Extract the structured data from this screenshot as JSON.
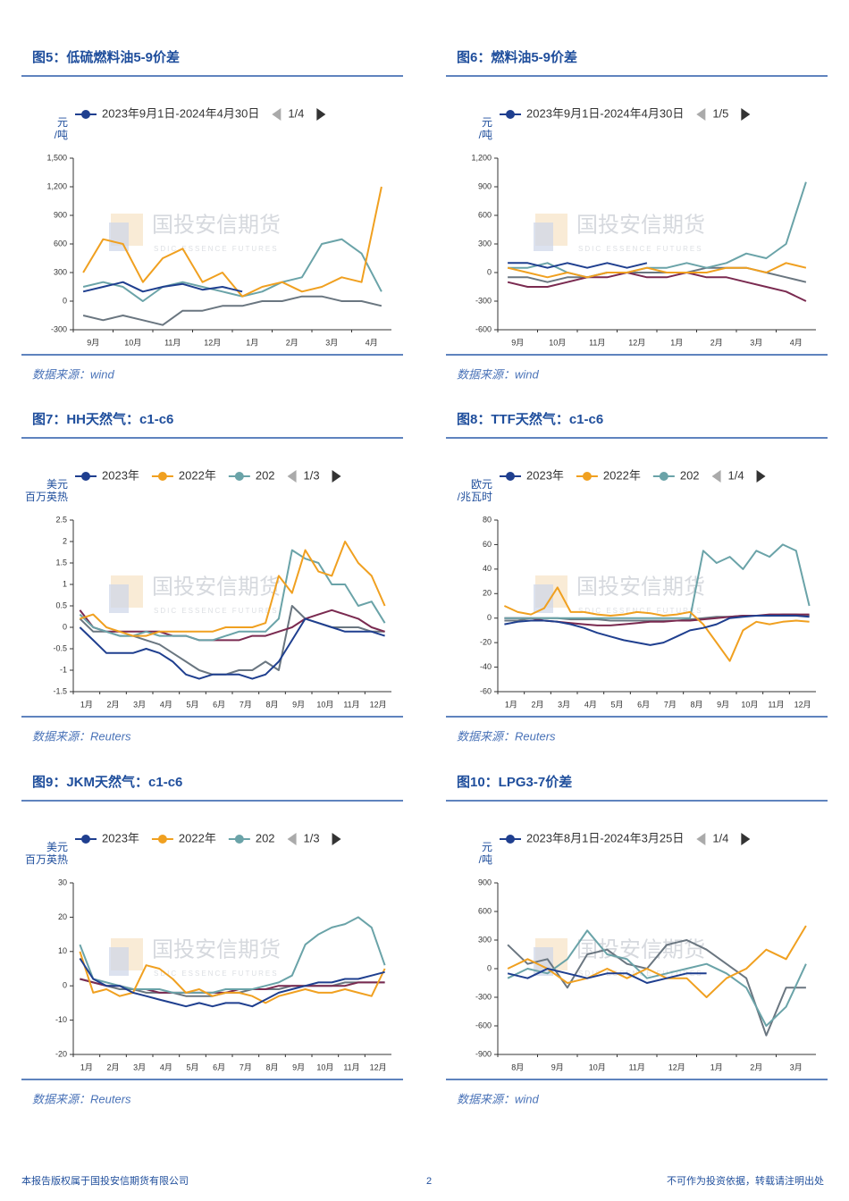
{
  "watermark": {
    "name": "国投安信期货",
    "sub": "SDIC ESSENCE FUTURES"
  },
  "footer": {
    "left": "本报告版权属于国投安信期货有限公司",
    "page": "2",
    "right": "不可作为投资依据，转载请注明出处"
  },
  "chart_data": [
    {
      "type": "line",
      "title": "图5：低硫燃料油5-9价差",
      "source": "数据来源：wind",
      "ylabel": [
        "元",
        "/吨"
      ],
      "legend_page": "1/4",
      "categories": [
        "9月",
        null,
        "10月",
        null,
        "11月",
        null,
        "12月",
        null,
        "1月",
        null,
        "2月",
        null,
        "3月",
        null,
        "4月",
        null
      ],
      "ylim": [
        -300,
        1500
      ],
      "yticks": [
        -300,
        0,
        300,
        600,
        900,
        {
          "value": 1200,
          "label": "1,200"
        },
        {
          "value": 1500,
          "label": "1,500"
        }
      ],
      "series": [
        {
          "name": "2023年9月1日-2024年4月30日",
          "color": "#1f3f8f",
          "values": [
            100,
            150,
            200,
            100,
            150,
            180,
            120,
            150,
            100,
            null,
            null,
            null,
            null,
            null,
            null,
            null
          ]
        },
        {
          "color": "#f0a020",
          "values": [
            300,
            650,
            600,
            200,
            450,
            550,
            200,
            300,
            50,
            150,
            200,
            100,
            150,
            250,
            200,
            1200
          ]
        },
        {
          "color": "#6aa3a8",
          "values": [
            150,
            200,
            150,
            0,
            150,
            200,
            150,
            100,
            50,
            100,
            200,
            250,
            600,
            650,
            500,
            100
          ]
        },
        {
          "color": "#6a7680",
          "values": [
            -150,
            -200,
            -150,
            -200,
            -250,
            -100,
            -100,
            -50,
            -50,
            0,
            0,
            50,
            50,
            0,
            0,
            -50
          ]
        }
      ]
    },
    {
      "type": "line",
      "title": "图6：燃料油5-9价差",
      "source": "数据来源：wind",
      "ylabel": [
        "元",
        "/吨"
      ],
      "legend_page": "1/5",
      "categories": [
        "9月",
        null,
        "10月",
        null,
        "11月",
        null,
        "12月",
        null,
        "1月",
        null,
        "2月",
        null,
        "3月",
        null,
        "4月",
        null
      ],
      "ylim": [
        -600,
        1200
      ],
      "yticks": [
        -600,
        -300,
        0,
        300,
        600,
        900,
        {
          "value": 1200,
          "label": "1,200"
        }
      ],
      "series": [
        {
          "name": "2023年9月1日-2024年4月30日",
          "color": "#1f3f8f",
          "values": [
            100,
            100,
            50,
            100,
            50,
            100,
            50,
            100,
            null,
            null,
            null,
            null,
            null,
            null,
            null,
            null
          ]
        },
        {
          "color": "#f0a020",
          "values": [
            50,
            0,
            -50,
            0,
            -50,
            0,
            0,
            50,
            0,
            0,
            0,
            50,
            50,
            0,
            100,
            50
          ]
        },
        {
          "color": "#6aa3a8",
          "values": [
            50,
            50,
            100,
            0,
            -50,
            0,
            0,
            50,
            50,
            100,
            50,
            100,
            200,
            150,
            300,
            950
          ]
        },
        {
          "color": "#7a2a50",
          "values": [
            -100,
            -150,
            -150,
            -100,
            -50,
            -50,
            0,
            -50,
            -50,
            0,
            -50,
            -50,
            -100,
            -150,
            -200,
            -300
          ]
        },
        {
          "color": "#6a7680",
          "values": [
            -50,
            -50,
            -100,
            -50,
            -50,
            0,
            0,
            0,
            0,
            0,
            50,
            50,
            50,
            0,
            -50,
            -100
          ]
        }
      ]
    },
    {
      "type": "line",
      "title": "图7：HH天然气：c1-c6",
      "source": "数据来源：Reuters",
      "ylabel": [
        "美元",
        "百万英热"
      ],
      "legend_page": "1/3",
      "categories": [
        "1月",
        null,
        "2月",
        null,
        "3月",
        null,
        "4月",
        null,
        "5月",
        null,
        "6月",
        null,
        "7月",
        null,
        "8月",
        null,
        "9月",
        null,
        "10月",
        null,
        "11月",
        null,
        "12月",
        null
      ],
      "ylim": [
        -1.5,
        2.5
      ],
      "yticks": [
        -1.5,
        -1,
        -0.5,
        0,
        0.5,
        1,
        1.5,
        2,
        2.5
      ],
      "series": [
        {
          "name": "2023年",
          "color": "#1f3f8f",
          "values": [
            0,
            -0.3,
            -0.6,
            -0.6,
            -0.6,
            -0.5,
            -0.6,
            -0.8,
            -1.1,
            -1.2,
            -1.1,
            -1.1,
            -1.1,
            -1.2,
            -1.1,
            -0.8,
            -0.3,
            0.2,
            0.1,
            0,
            -0.1,
            -0.1,
            -0.1,
            -0.2
          ]
        },
        {
          "name": "2022年",
          "color": "#f0a020",
          "values": [
            0.2,
            0.3,
            0,
            -0.1,
            -0.2,
            -0.2,
            -0.1,
            -0.1,
            -0.1,
            -0.1,
            -0.1,
            0,
            0,
            0,
            0.1,
            1.2,
            0.8,
            1.8,
            1.3,
            1.2,
            2,
            1.5,
            1.2,
            0.5
          ]
        },
        {
          "name": "202",
          "color": "#6aa3a8",
          "values": [
            0.3,
            0,
            -0.1,
            -0.2,
            -0.2,
            -0.1,
            -0.2,
            -0.2,
            -0.2,
            -0.3,
            -0.3,
            -0.2,
            -0.1,
            -0.1,
            -0.1,
            0.2,
            1.8,
            1.6,
            1.5,
            1,
            1,
            0.5,
            0.6,
            0.1
          ]
        },
        {
          "color": "#7a2a50",
          "values": [
            0.4,
            0,
            -0.1,
            -0.1,
            -0.1,
            -0.1,
            -0.1,
            -0.2,
            -0.2,
            -0.3,
            -0.3,
            -0.3,
            -0.3,
            -0.2,
            -0.2,
            -0.1,
            0,
            0.2,
            0.3,
            0.4,
            0.3,
            0.2,
            0,
            -0.1
          ]
        },
        {
          "color": "#6a7680",
          "values": [
            0.2,
            -0.1,
            -0.1,
            -0.2,
            -0.2,
            -0.3,
            -0.4,
            -0.6,
            -0.8,
            -1,
            -1.1,
            -1.1,
            -1,
            -1,
            -0.8,
            -1,
            0.5,
            0.2,
            0.1,
            0,
            0,
            0,
            -0.1,
            -0.1
          ]
        }
      ]
    },
    {
      "type": "line",
      "title": "图8：TTF天然气：c1-c6",
      "source": "数据来源：Reuters",
      "ylabel": [
        "欧元",
        "/兆瓦时"
      ],
      "legend_page": "1/4",
      "categories": [
        "1月",
        null,
        "2月",
        null,
        "3月",
        null,
        "4月",
        null,
        "5月",
        null,
        "6月",
        null,
        "7月",
        null,
        "8月",
        null,
        "9月",
        null,
        "10月",
        null,
        "11月",
        null,
        "12月",
        null
      ],
      "ylim": [
        -60,
        80
      ],
      "yticks": [
        -60,
        -40,
        -20,
        0,
        20,
        40,
        60,
        80
      ],
      "series": [
        {
          "name": "2023年",
          "color": "#1f3f8f",
          "values": [
            -5,
            -3,
            -2,
            -2,
            -3,
            -5,
            -8,
            -12,
            -15,
            -18,
            -20,
            -22,
            -20,
            -15,
            -10,
            -8,
            -5,
            0,
            1,
            2,
            2,
            2,
            2,
            1
          ]
        },
        {
          "name": "2022年",
          "color": "#f0a020",
          "values": [
            10,
            5,
            3,
            8,
            25,
            5,
            5,
            3,
            2,
            3,
            5,
            4,
            2,
            3,
            5,
            -5,
            -20,
            -35,
            -10,
            -3,
            -5,
            -3,
            -2,
            -3
          ]
        },
        {
          "name": "202",
          "color": "#6aa3a8",
          "values": [
            0,
            0,
            0,
            0,
            0,
            0,
            0,
            0,
            0,
            0,
            0,
            0,
            0,
            0,
            0,
            55,
            45,
            50,
            40,
            55,
            50,
            60,
            55,
            10
          ]
        },
        {
          "color": "#7a2a50",
          "values": [
            0,
            0,
            0,
            -2,
            -3,
            -4,
            -5,
            -6,
            -6,
            -5,
            -4,
            -3,
            -3,
            -2,
            -2,
            -1,
            0,
            1,
            2,
            2,
            3,
            3,
            3,
            3
          ]
        },
        {
          "color": "#6a7680",
          "values": [
            -2,
            -2,
            0,
            0,
            0,
            -1,
            -1,
            -1,
            -2,
            -2,
            -2,
            -2,
            -2,
            -2,
            -1,
            0,
            1,
            1,
            2,
            2,
            2,
            3,
            3,
            2
          ]
        }
      ]
    },
    {
      "type": "line",
      "title": "图9：JKM天然气：c1-c6",
      "source": "数据来源：Reuters",
      "ylabel": [
        "美元",
        "百万英热"
      ],
      "legend_page": "1/3",
      "categories": [
        "1月",
        null,
        "2月",
        null,
        "3月",
        null,
        "4月",
        null,
        "5月",
        null,
        "6月",
        null,
        "7月",
        null,
        "8月",
        null,
        "9月",
        null,
        "10月",
        null,
        "11月",
        null,
        "12月",
        null
      ],
      "ylim": [
        -20,
        30
      ],
      "yticks": [
        -20,
        -10,
        0,
        10,
        20,
        30
      ],
      "series": [
        {
          "name": "2023年",
          "color": "#1f3f8f",
          "values": [
            8,
            2,
            0,
            0,
            -2,
            -3,
            -4,
            -5,
            -6,
            -5,
            -6,
            -5,
            -5,
            -6,
            -4,
            -2,
            -1,
            0,
            1,
            1,
            2,
            2,
            3,
            4
          ]
        },
        {
          "name": "2022年",
          "color": "#f0a020",
          "values": [
            10,
            -2,
            -1,
            -3,
            -2,
            6,
            5,
            2,
            -2,
            -1,
            -3,
            -2,
            -2,
            -3,
            -5,
            -3,
            -2,
            -1,
            -2,
            -2,
            -1,
            -2,
            -3,
            5
          ]
        },
        {
          "name": "202",
          "color": "#6aa3a8",
          "values": [
            12,
            2,
            1,
            0,
            -1,
            -1,
            -1,
            -2,
            -2,
            -2,
            -2,
            -1,
            -1,
            -1,
            0,
            1,
            3,
            12,
            15,
            17,
            18,
            20,
            17,
            6
          ]
        },
        {
          "color": "#7a2a50",
          "values": [
            2,
            1,
            0,
            0,
            -1,
            -1,
            -2,
            -2,
            -2,
            -2,
            -2,
            -2,
            -1,
            -1,
            -1,
            0,
            0,
            0,
            0,
            0,
            0,
            1,
            1,
            1
          ]
        },
        {
          "color": "#6a7680",
          "values": [
            2,
            1,
            0,
            -1,
            -1,
            -2,
            -2,
            -2,
            -3,
            -3,
            -3,
            -2,
            -2,
            -1,
            -1,
            -1,
            0,
            0,
            0,
            0,
            1,
            1,
            1,
            1
          ]
        }
      ]
    },
    {
      "type": "line",
      "title": "图10：LPG3-7价差",
      "source": "数据来源：wind",
      "ylabel": [
        "元",
        "/吨"
      ],
      "legend_page": "1/4",
      "categories": [
        "8月",
        null,
        "9月",
        null,
        "10月",
        null,
        "11月",
        null,
        "12月",
        null,
        "1月",
        null,
        "2月",
        null,
        "3月",
        null
      ],
      "ylim": [
        -900,
        900
      ],
      "yticks": [
        -900,
        -600,
        -300,
        0,
        300,
        600,
        900
      ],
      "series": [
        {
          "name": "2023年8月1日-2024年3月25日",
          "color": "#1f3f8f",
          "values": [
            -50,
            -100,
            0,
            -50,
            -100,
            -50,
            -50,
            -150,
            -100,
            -50,
            -50,
            null,
            null,
            null,
            null,
            null
          ]
        },
        {
          "color": "#f0a020",
          "values": [
            0,
            100,
            0,
            -150,
            -100,
            0,
            -100,
            0,
            -100,
            -100,
            -300,
            -100,
            0,
            200,
            100,
            450
          ]
        },
        {
          "color": "#6aa3a8",
          "values": [
            -100,
            0,
            -50,
            100,
            400,
            150,
            100,
            -100,
            -50,
            0,
            50,
            -50,
            -200,
            -600,
            -400,
            50
          ]
        },
        {
          "color": "#6a7680",
          "values": [
            250,
            50,
            100,
            -200,
            150,
            200,
            50,
            0,
            250,
            300,
            200,
            50,
            -100,
            -700,
            -200,
            -200
          ]
        }
      ]
    }
  ]
}
